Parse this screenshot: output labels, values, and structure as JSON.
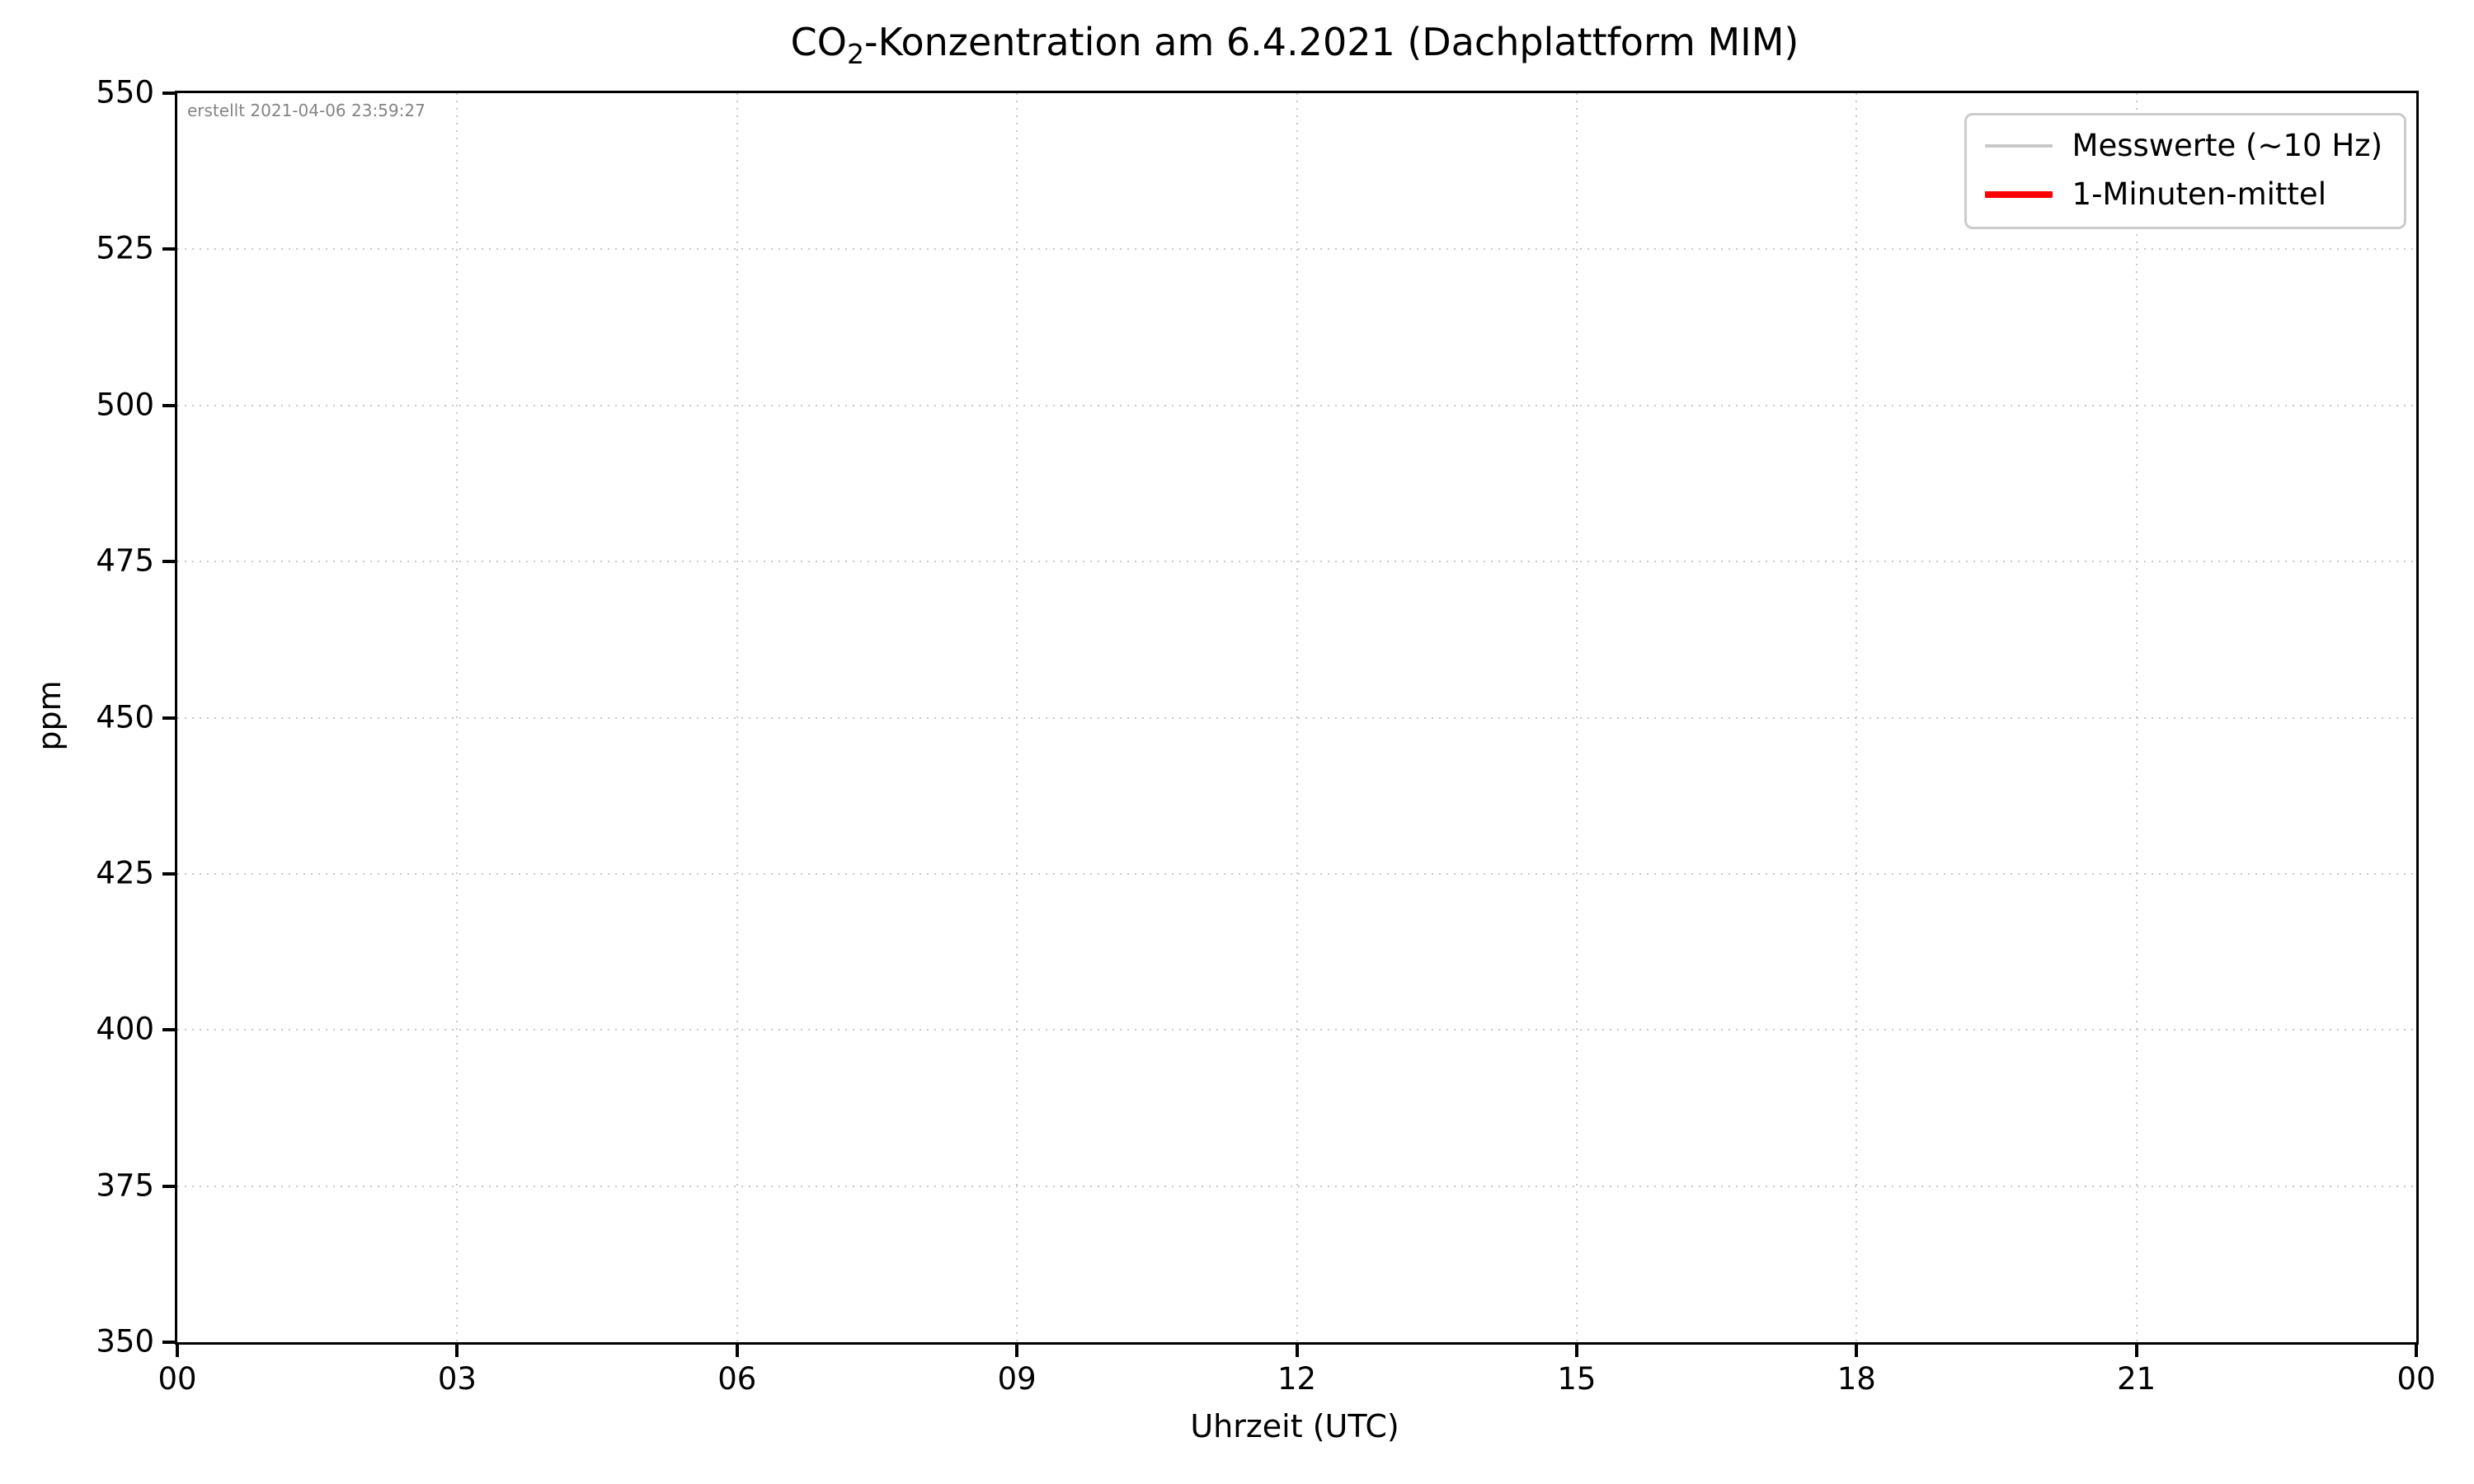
{
  "figure": {
    "title_parts": {
      "prefix": "CO",
      "subscript": "2",
      "suffix": "-Konzentration am 6.4.2021 (Dachplattform MIM)"
    }
  },
  "chart_data": {
    "type": "line",
    "title": "CO₂-Konzentration am 6.4.2021 (Dachplattform MIM)",
    "xlabel": "Uhrzeit (UTC)",
    "ylabel": "ppm",
    "annotation": "erstellt 2021-04-06 23:59:27",
    "x_ticks": [
      "00",
      "03",
      "06",
      "09",
      "12",
      "15",
      "18",
      "21",
      "00"
    ],
    "x_range_hours": [
      0,
      24
    ],
    "y_ticks": [
      350,
      375,
      400,
      425,
      450,
      475,
      500,
      525,
      550
    ],
    "ylim": [
      350,
      550
    ],
    "grid": {
      "on": true,
      "style": "dotted",
      "color": "#c9c9c9"
    },
    "legend_position": "upper right",
    "legend": [
      {
        "label": "Messwerte (~10 Hz)",
        "color": "#c8c8c8",
        "line_width": 4
      },
      {
        "label": "1-Minuten-mittel",
        "color": "#ff0000",
        "line_width": 8
      }
    ],
    "series": [
      {
        "name": "Messwerte (~10 Hz)",
        "x": [],
        "y": []
      },
      {
        "name": "1-Minuten-mittel",
        "x": [],
        "y": []
      }
    ]
  }
}
